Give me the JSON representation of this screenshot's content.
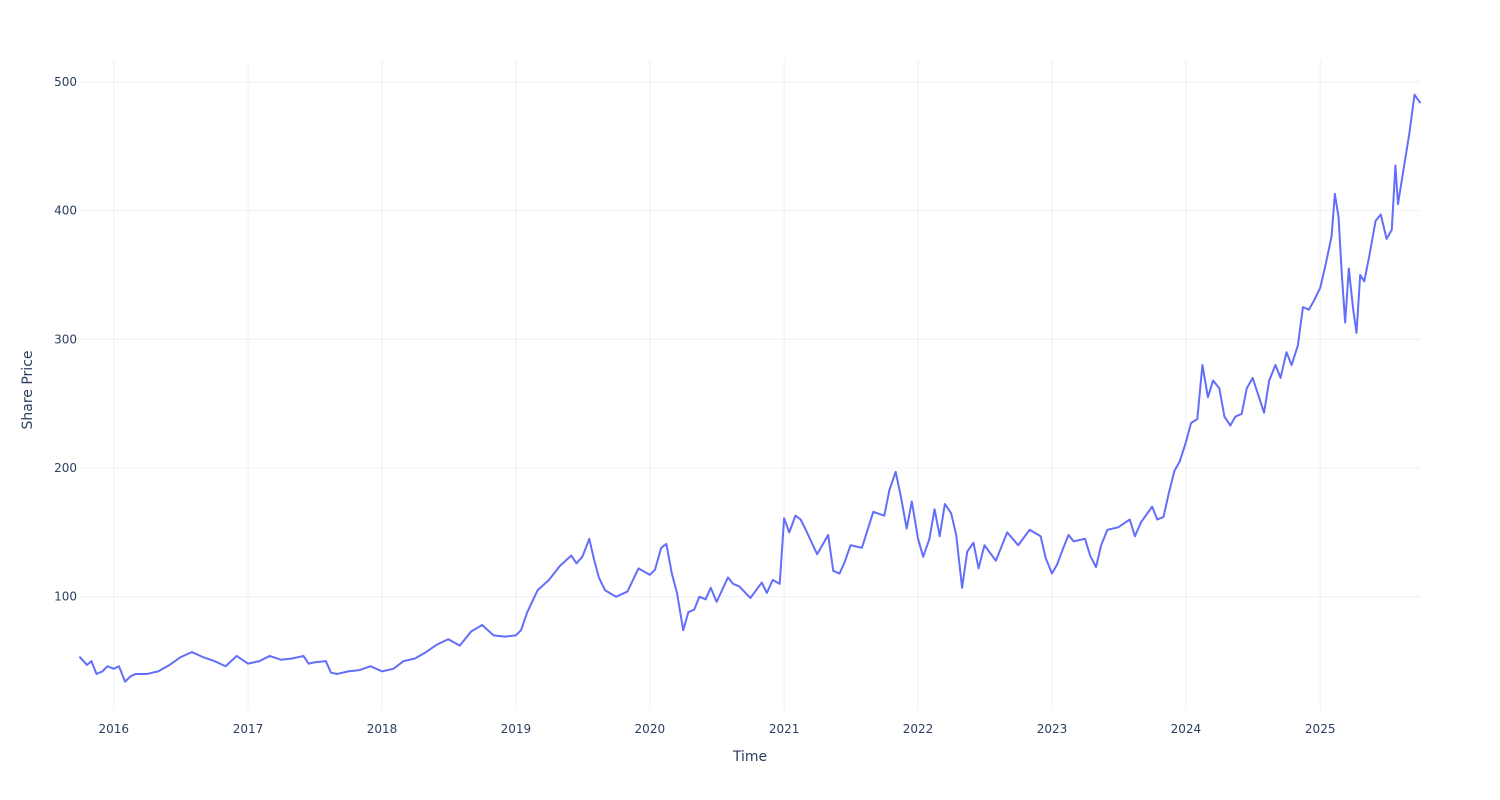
{
  "chart_data": {
    "type": "line",
    "title": "",
    "xlabel": "Time",
    "ylabel": "Share Price",
    "x_ticks": [
      "2016",
      "2017",
      "2018",
      "2019",
      "2020",
      "2021",
      "2022",
      "2023",
      "2024",
      "2025"
    ],
    "y_ticks": [
      "100",
      "200",
      "300",
      "400",
      "500"
    ],
    "xlim": [
      "2015-10-01",
      "2025-09-30"
    ],
    "ylim": [
      12,
      517
    ],
    "grid": true,
    "colors": {
      "line": "#636efa",
      "grid": "#ebf0f8",
      "text": "#2a3f5f",
      "background": "#ffffff"
    },
    "series": [
      {
        "points": [
          [
            "2015-10-01",
            53
          ],
          [
            "2015-10-20",
            47
          ],
          [
            "2015-11-01",
            50
          ],
          [
            "2015-11-15",
            40
          ],
          [
            "2015-12-01",
            42
          ],
          [
            "2015-12-15",
            46
          ],
          [
            "2016-01-01",
            44
          ],
          [
            "2016-01-15",
            46
          ],
          [
            "2016-02-01",
            34
          ],
          [
            "2016-02-15",
            38
          ],
          [
            "2016-03-01",
            40
          ],
          [
            "2016-04-01",
            40
          ],
          [
            "2016-05-01",
            42
          ],
          [
            "2016-06-01",
            47
          ],
          [
            "2016-07-01",
            53
          ],
          [
            "2016-08-01",
            57
          ],
          [
            "2016-09-01",
            53
          ],
          [
            "2016-10-01",
            50
          ],
          [
            "2016-11-01",
            46
          ],
          [
            "2016-12-01",
            54
          ],
          [
            "2017-01-01",
            48
          ],
          [
            "2017-02-01",
            50
          ],
          [
            "2017-03-01",
            54
          ],
          [
            "2017-04-01",
            51
          ],
          [
            "2017-05-01",
            52
          ],
          [
            "2017-06-01",
            54
          ],
          [
            "2017-06-15",
            48
          ],
          [
            "2017-07-01",
            49
          ],
          [
            "2017-08-01",
            50
          ],
          [
            "2017-08-15",
            41
          ],
          [
            "2017-09-01",
            40
          ],
          [
            "2017-10-01",
            42
          ],
          [
            "2017-11-01",
            43
          ],
          [
            "2017-12-01",
            46
          ],
          [
            "2018-01-01",
            42
          ],
          [
            "2018-02-01",
            44
          ],
          [
            "2018-03-01",
            50
          ],
          [
            "2018-04-01",
            52
          ],
          [
            "2018-05-01",
            57
          ],
          [
            "2018-06-01",
            63
          ],
          [
            "2018-07-01",
            67
          ],
          [
            "2018-08-01",
            62
          ],
          [
            "2018-09-01",
            73
          ],
          [
            "2018-10-01",
            78
          ],
          [
            "2018-11-01",
            70
          ],
          [
            "2018-12-01",
            69
          ],
          [
            "2019-01-01",
            70
          ],
          [
            "2019-01-15",
            74
          ],
          [
            "2019-02-01",
            88
          ],
          [
            "2019-03-01",
            105
          ],
          [
            "2019-04-01",
            113
          ],
          [
            "2019-05-01",
            124
          ],
          [
            "2019-06-01",
            132
          ],
          [
            "2019-06-15",
            126
          ],
          [
            "2019-07-01",
            131
          ],
          [
            "2019-07-20",
            145
          ],
          [
            "2019-08-01",
            130
          ],
          [
            "2019-08-15",
            115
          ],
          [
            "2019-09-01",
            105
          ],
          [
            "2019-10-01",
            100
          ],
          [
            "2019-11-01",
            104
          ],
          [
            "2019-12-01",
            122
          ],
          [
            "2020-01-01",
            117
          ],
          [
            "2020-01-15",
            121
          ],
          [
            "2020-02-01",
            138
          ],
          [
            "2020-02-15",
            141
          ],
          [
            "2020-03-01",
            118
          ],
          [
            "2020-03-15",
            103
          ],
          [
            "2020-04-01",
            74
          ],
          [
            "2020-04-15",
            88
          ],
          [
            "2020-05-01",
            90
          ],
          [
            "2020-05-15",
            100
          ],
          [
            "2020-06-01",
            98
          ],
          [
            "2020-06-15",
            107
          ],
          [
            "2020-07-01",
            96
          ],
          [
            "2020-08-01",
            115
          ],
          [
            "2020-08-15",
            110
          ],
          [
            "2020-09-01",
            108
          ],
          [
            "2020-10-01",
            99
          ],
          [
            "2020-11-01",
            111
          ],
          [
            "2020-11-15",
            103
          ],
          [
            "2020-12-01",
            113
          ],
          [
            "2020-12-20",
            110
          ],
          [
            "2021-01-01",
            161
          ],
          [
            "2021-01-15",
            150
          ],
          [
            "2021-02-01",
            163
          ],
          [
            "2021-02-15",
            160
          ],
          [
            "2021-03-01",
            152
          ],
          [
            "2021-04-01",
            133
          ],
          [
            "2021-05-01",
            148
          ],
          [
            "2021-05-15",
            120
          ],
          [
            "2021-06-01",
            118
          ],
          [
            "2021-06-15",
            127
          ],
          [
            "2021-07-01",
            140
          ],
          [
            "2021-08-01",
            138
          ],
          [
            "2021-09-01",
            166
          ],
          [
            "2021-10-01",
            163
          ],
          [
            "2021-10-15",
            183
          ],
          [
            "2021-11-01",
            197
          ],
          [
            "2021-11-15",
            178
          ],
          [
            "2021-12-01",
            153
          ],
          [
            "2021-12-15",
            174
          ],
          [
            "2022-01-01",
            145
          ],
          [
            "2022-01-15",
            131
          ],
          [
            "2022-02-01",
            145
          ],
          [
            "2022-02-15",
            168
          ],
          [
            "2022-03-01",
            147
          ],
          [
            "2022-03-15",
            172
          ],
          [
            "2022-04-01",
            165
          ],
          [
            "2022-04-15",
            148
          ],
          [
            "2022-05-01",
            107
          ],
          [
            "2022-05-15",
            135
          ],
          [
            "2022-06-01",
            142
          ],
          [
            "2022-06-15",
            122
          ],
          [
            "2022-07-01",
            140
          ],
          [
            "2022-08-01",
            128
          ],
          [
            "2022-09-01",
            150
          ],
          [
            "2022-10-01",
            140
          ],
          [
            "2022-11-01",
            152
          ],
          [
            "2022-12-01",
            147
          ],
          [
            "2022-12-15",
            130
          ],
          [
            "2023-01-01",
            118
          ],
          [
            "2023-01-15",
            125
          ],
          [
            "2023-02-01",
            138
          ],
          [
            "2023-02-15",
            148
          ],
          [
            "2023-03-01",
            143
          ],
          [
            "2023-04-01",
            145
          ],
          [
            "2023-04-15",
            132
          ],
          [
            "2023-05-01",
            123
          ],
          [
            "2023-05-15",
            140
          ],
          [
            "2023-06-01",
            152
          ],
          [
            "2023-07-01",
            154
          ],
          [
            "2023-08-01",
            160
          ],
          [
            "2023-08-15",
            147
          ],
          [
            "2023-09-01",
            158
          ],
          [
            "2023-10-01",
            170
          ],
          [
            "2023-10-15",
            160
          ],
          [
            "2023-11-01",
            162
          ],
          [
            "2023-11-15",
            180
          ],
          [
            "2023-12-01",
            198
          ],
          [
            "2023-12-15",
            205
          ],
          [
            "2024-01-01",
            220
          ],
          [
            "2024-01-15",
            235
          ],
          [
            "2024-02-01",
            238
          ],
          [
            "2024-02-15",
            280
          ],
          [
            "2024-03-01",
            255
          ],
          [
            "2024-03-15",
            268
          ],
          [
            "2024-04-01",
            262
          ],
          [
            "2024-04-15",
            240
          ],
          [
            "2024-05-01",
            233
          ],
          [
            "2024-05-15",
            240
          ],
          [
            "2024-06-01",
            242
          ],
          [
            "2024-06-15",
            262
          ],
          [
            "2024-07-01",
            270
          ],
          [
            "2024-08-01",
            243
          ],
          [
            "2024-08-15",
            268
          ],
          [
            "2024-09-01",
            280
          ],
          [
            "2024-09-15",
            270
          ],
          [
            "2024-10-01",
            290
          ],
          [
            "2024-10-15",
            280
          ],
          [
            "2024-11-01",
            295
          ],
          [
            "2024-11-15",
            325
          ],
          [
            "2024-12-01",
            323
          ],
          [
            "2024-12-15",
            330
          ],
          [
            "2025-01-01",
            340
          ],
          [
            "2025-01-15",
            357
          ],
          [
            "2025-02-01",
            380
          ],
          [
            "2025-02-10",
            413
          ],
          [
            "2025-02-20",
            395
          ],
          [
            "2025-03-01",
            350
          ],
          [
            "2025-03-10",
            313
          ],
          [
            "2025-03-20",
            355
          ],
          [
            "2025-04-01",
            323
          ],
          [
            "2025-04-10",
            305
          ],
          [
            "2025-04-20",
            350
          ],
          [
            "2025-05-01",
            345
          ],
          [
            "2025-05-15",
            365
          ],
          [
            "2025-06-01",
            392
          ],
          [
            "2025-06-15",
            397
          ],
          [
            "2025-07-01",
            378
          ],
          [
            "2025-07-15",
            385
          ],
          [
            "2025-07-25",
            435
          ],
          [
            "2025-08-01",
            405
          ],
          [
            "2025-08-15",
            430
          ],
          [
            "2025-09-01",
            460
          ],
          [
            "2025-09-15",
            490
          ],
          [
            "2025-09-30",
            484
          ]
        ]
      }
    ]
  }
}
